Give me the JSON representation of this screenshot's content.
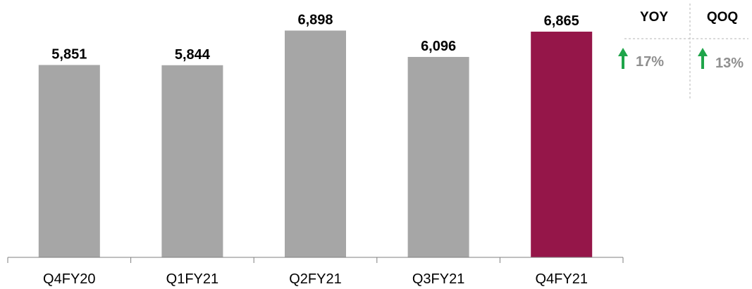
{
  "colors": {
    "default_bar": "#a6a6a6",
    "highlight_bar": "#951649",
    "up_arrow": "#1fa54a",
    "growth_text": "#8f8f8f"
  },
  "chart_data": {
    "type": "bar",
    "categories": [
      "Q4FY20",
      "Q1FY21",
      "Q2FY21",
      "Q3FY21",
      "Q4FY21"
    ],
    "values": [
      5851,
      5844,
      6898,
      6096,
      6865
    ],
    "data_labels": [
      "5,851",
      "5,844",
      "6,898",
      "6,096",
      "6,865"
    ],
    "highlight_index": 4,
    "title": "",
    "xlabel": "",
    "ylabel": "",
    "ylim": [
      0,
      7400
    ],
    "grid": false
  },
  "growth": {
    "columns": [
      {
        "header": "YOY",
        "value": "17%",
        "direction": "up"
      },
      {
        "header": "QOQ",
        "value": "13%",
        "direction": "up"
      }
    ]
  }
}
